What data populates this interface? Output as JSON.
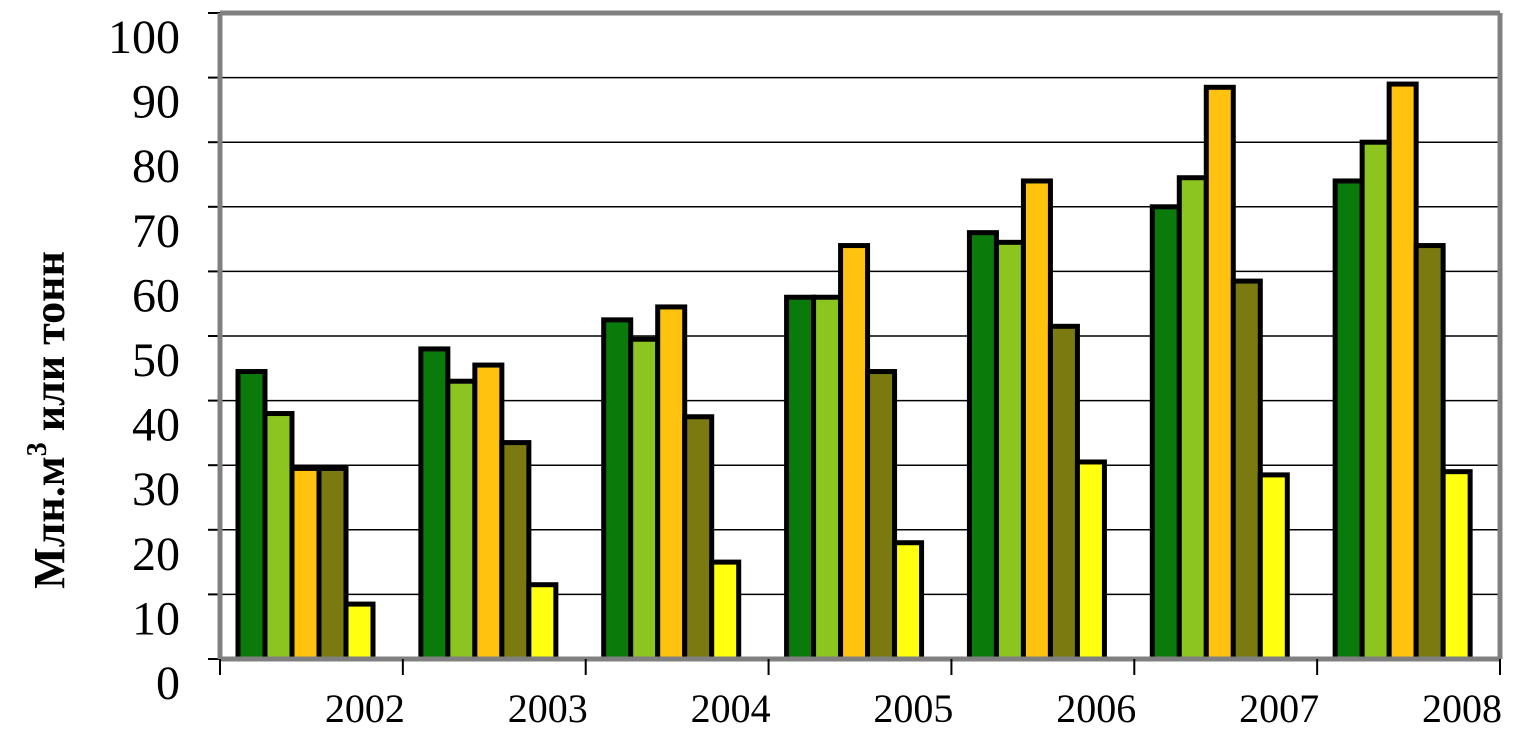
{
  "chart_data": {
    "type": "bar",
    "title": "",
    "ylabel": {
      "main": "Млн.м",
      "sup": "3",
      "rest": " или тонн"
    },
    "xlabel": "",
    "categories": [
      "2002",
      "2003",
      "2004",
      "2005",
      "2006",
      "2007",
      "2008"
    ],
    "ylim": [
      0,
      100
    ],
    "yticks": [
      0,
      10,
      20,
      30,
      40,
      50,
      60,
      70,
      80,
      90,
      100
    ],
    "grid": true,
    "legend": "none",
    "series": [
      {
        "color": "#0a7a0a",
        "values": [
          44.5,
          48,
          52.5,
          56,
          66,
          70,
          74
        ]
      },
      {
        "color": "#8cc420",
        "values": [
          38,
          43,
          49.5,
          56,
          64.5,
          74.5,
          80
        ]
      },
      {
        "color": "#ffc20e",
        "values": [
          29.5,
          45.5,
          54.5,
          64,
          74,
          88.5,
          89
        ]
      },
      {
        "color": "#7a7a10",
        "values": [
          29.5,
          33.5,
          37.5,
          44.5,
          51.5,
          58.5,
          64
        ]
      },
      {
        "color": "#ffff10",
        "values": [
          8.5,
          11.5,
          15,
          18,
          30.5,
          28.5,
          29
        ]
      }
    ]
  }
}
